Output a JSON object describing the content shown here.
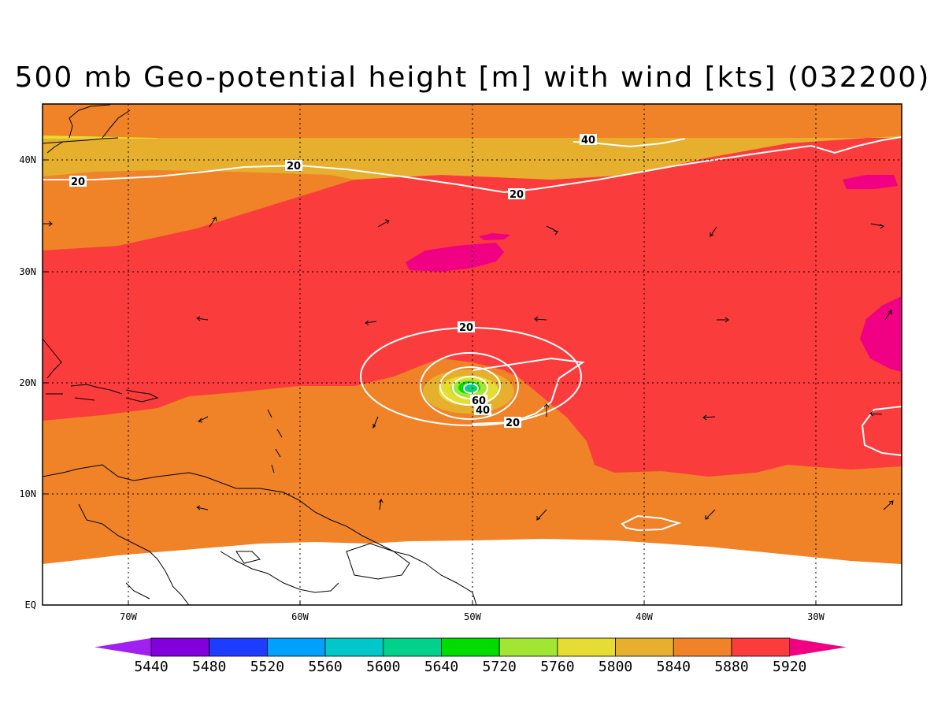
{
  "title": "500 mb Geo-potential height [m] with wind [kts] (032200)",
  "map": {
    "longitude_labels": [
      "70W",
      "60W",
      "50W",
      "40W",
      "30W"
    ],
    "latitude_labels": [
      "EQ",
      "10N",
      "20N",
      "30N",
      "40N"
    ],
    "longitude_range_deg": [
      -75,
      -25
    ],
    "latitude_range_deg": [
      0,
      45
    ]
  },
  "contour_labels": [
    "40",
    "20",
    "20",
    "20",
    "20",
    "60",
    "40",
    "20"
  ],
  "colorbar": {
    "labels": [
      "5440",
      "5480",
      "5520",
      "5560",
      "5600",
      "5640",
      "5720",
      "5760",
      "5800",
      "5840",
      "5880",
      "5920"
    ],
    "colors": [
      "#a020f0",
      "#8200dc",
      "#1e3cff",
      "#00a0ff",
      "#00c8c8",
      "#00d28c",
      "#00dc00",
      "#a0e632",
      "#e6dc32",
      "#e6af2d",
      "#f08228",
      "#fa3c3c",
      "#f00082"
    ]
  }
}
